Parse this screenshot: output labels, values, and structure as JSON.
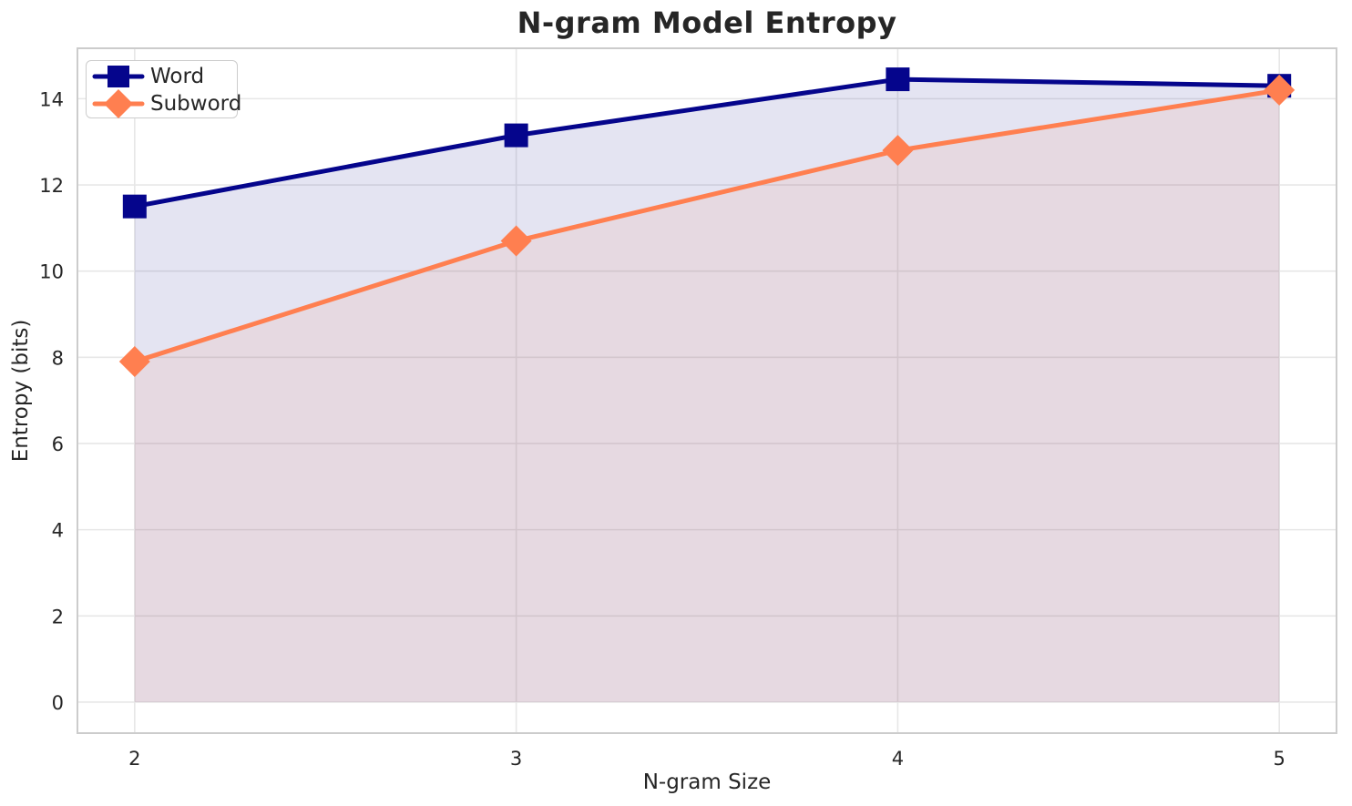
{
  "chart_data": {
    "type": "line",
    "title": "N-gram Model Entropy",
    "xlabel": "N-gram Size",
    "ylabel": "Entropy (bits)",
    "x": [
      2,
      3,
      4,
      5
    ],
    "series": [
      {
        "name": "Word",
        "values": [
          11.5,
          13.15,
          14.45,
          14.3
        ],
        "color": "#05058c",
        "marker": "square",
        "fill_opacity": 0.11
      },
      {
        "name": "Subword",
        "values": [
          7.9,
          10.7,
          12.8,
          14.2
        ],
        "color": "#ff7f50",
        "marker": "diamond",
        "fill_opacity": 0.1
      }
    ],
    "xticks": [
      2,
      3,
      4,
      5
    ],
    "yticks": [
      0,
      2,
      4,
      6,
      8,
      10,
      12,
      14
    ],
    "xlim": [
      1.85,
      5.15
    ],
    "ylim": [
      -0.72,
      15.17
    ],
    "area_baseline": 0,
    "grid": true,
    "legend_position": "upper left"
  },
  "styles": {
    "background": "#ffffff",
    "grid_color": "#e7e7e7",
    "border_color": "#cccccc",
    "tick_color": "#262626",
    "text_color": "#262626"
  }
}
